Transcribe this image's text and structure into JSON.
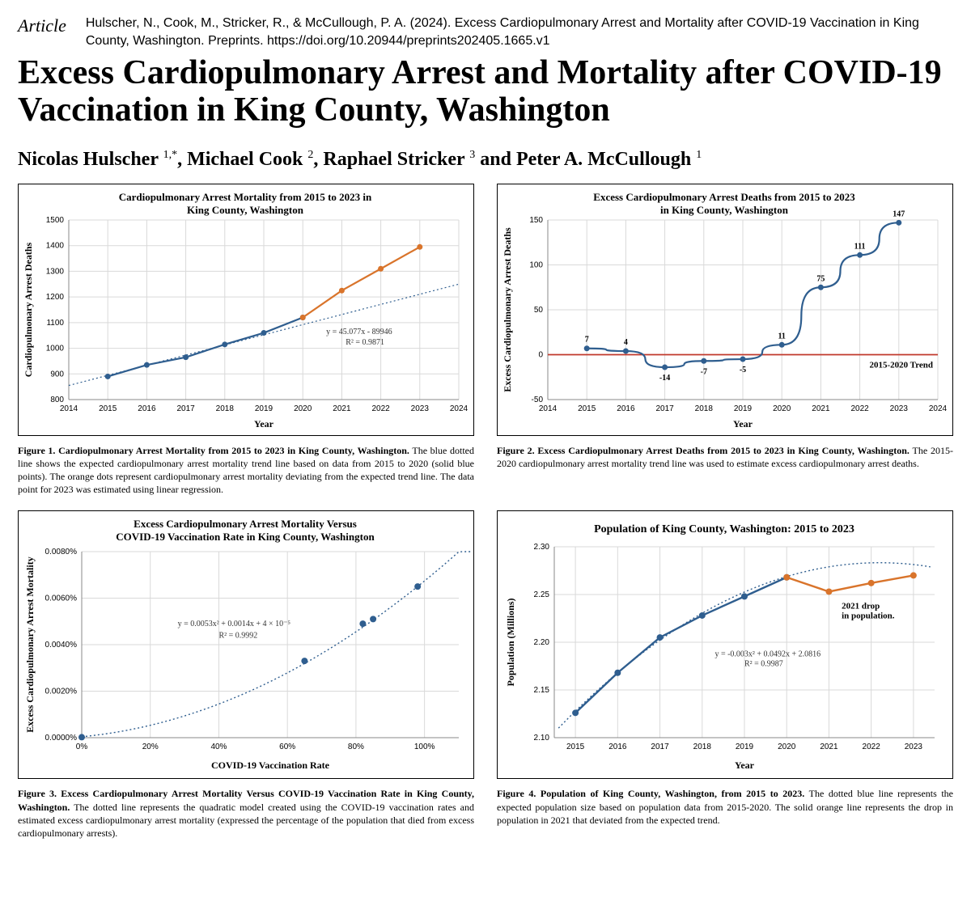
{
  "header": {
    "article_label": "Article",
    "citation": "Hulscher, N., Cook, M., Stricker, R., & McCullough, P. A. (2024). Excess Cardiopulmonary Arrest and Mortality after COVID-19 Vaccination in King County, Washington. Preprints. https://doi.org/10.20944/preprints202405.1665.v1",
    "title": "Excess Cardiopulmonary Arrest and Mortality after COVID-19 Vaccination in King County, Washington",
    "authors_html": "Nicolas Hulscher <sup>1,*</sup>, Michael Cook <sup>2</sup>, Raphael Stricker <sup>3</sup> and Peter A. McCullough <sup>1</sup>"
  },
  "colors": {
    "blue": "#2f5e8f",
    "orange": "#d9742b",
    "trend": "#2f5e8f",
    "red": "#c0392b",
    "grid": "#d9d9d9",
    "axis": "#888888",
    "bg": "#ffffff"
  },
  "fig1": {
    "type": "line+scatter",
    "title": "Cardiopulmonary Arrest Mortality from 2015 to 2023 in King County, Washington",
    "xlabel": "Year",
    "ylabel": "Cardiopulmonary Arrest Deaths",
    "xlim": [
      2014,
      2024
    ],
    "ylim": [
      800,
      1500
    ],
    "xticks": [
      2014,
      2015,
      2016,
      2017,
      2018,
      2019,
      2020,
      2021,
      2022,
      2023,
      2024
    ],
    "yticks": [
      800,
      900,
      1000,
      1100,
      1200,
      1300,
      1400,
      1500
    ],
    "blue_pts": [
      [
        2015,
        890
      ],
      [
        2016,
        935
      ],
      [
        2017,
        965
      ],
      [
        2018,
        1015
      ],
      [
        2019,
        1060
      ],
      [
        2020,
        1120
      ]
    ],
    "orange_pts": [
      [
        2020,
        1120
      ],
      [
        2021,
        1225
      ],
      [
        2022,
        1310
      ],
      [
        2023,
        1395
      ]
    ],
    "trend_line": [
      [
        2014,
        855
      ],
      [
        2024,
        1250
      ]
    ],
    "eq1": "y = 45.077x - 89946",
    "eq2": "R² = 0.9871",
    "title_fs": 13,
    "label_fs": 12,
    "tick_fs": 10,
    "caption_b": "Figure 1. Cardiopulmonary Arrest Mortality from 2015 to 2023 in King County, Washington.",
    "caption": "The blue dotted line shows the expected cardiopulmonary arrest mortality trend line based on data from 2015 to 2020 (solid blue points). The orange dots represent cardiopulmonary arrest mortality deviating from the expected trend line. The data point for 2023 was estimated using linear regression."
  },
  "fig2": {
    "type": "line+scatter",
    "title": "Excess Cardiopulmonary Arrest Deaths from 2015 to 2023 in King County, Washington",
    "xlabel": "Year",
    "ylabel": "Excess Cardiopulmonary Arrest Deaths",
    "xlim": [
      2014,
      2024
    ],
    "ylim": [
      -50,
      150
    ],
    "xticks": [
      2014,
      2015,
      2016,
      2017,
      2018,
      2019,
      2020,
      2021,
      2022,
      2023,
      2024
    ],
    "yticks": [
      -50,
      0,
      50,
      100,
      150
    ],
    "pts": [
      [
        2015,
        7
      ],
      [
        2016,
        4
      ],
      [
        2017,
        -14
      ],
      [
        2018,
        -7
      ],
      [
        2019,
        -5
      ],
      [
        2020,
        11
      ],
      [
        2021,
        75
      ],
      [
        2022,
        111
      ],
      [
        2023,
        147
      ]
    ],
    "labels": {
      "2015": "7",
      "2016": "4",
      "2017": "-14",
      "2018": "-7",
      "2019": "-5",
      "2020": "11",
      "2021": "75",
      "2022": "111",
      "2023": "147"
    },
    "zero_line": 0,
    "zero_label": "2015-2020 Trend",
    "title_fs": 13,
    "label_fs": 12,
    "tick_fs": 10,
    "caption_b": "Figure 2. Excess Cardiopulmonary Arrest Deaths from 2015 to 2023 in King County, Washington.",
    "caption": "The 2015-2020 cardiopulmonary arrest mortality trend line was used to estimate excess cardiopulmonary arrest deaths."
  },
  "fig3": {
    "type": "scatter+curve",
    "title": "Excess Cardiopulmonary Arrest Mortality Versus COVID-19 Vaccination Rate in King County, Washington",
    "xlabel": "COVID-19 Vaccination Rate",
    "ylabel": "Excess Cardiopulmonary Arrest Mortality",
    "xlim": [
      0,
      1.1
    ],
    "ylim": [
      0,
      0.008
    ],
    "xticks": [
      0,
      0.2,
      0.4,
      0.6,
      0.8,
      1.0
    ],
    "xticklabels": [
      "0%",
      "20%",
      "40%",
      "60%",
      "80%",
      "100%"
    ],
    "yticks": [
      0,
      0.002,
      0.004,
      0.006,
      0.008
    ],
    "yticklabels": [
      "0.0000%",
      "0.0020%",
      "0.0040%",
      "0.0060%",
      "0.0080%"
    ],
    "pts": [
      [
        0,
        2e-05
      ],
      [
        0.65,
        0.0033
      ],
      [
        0.82,
        0.0049
      ],
      [
        0.85,
        0.0051
      ],
      [
        0.98,
        0.0065
      ]
    ],
    "curve_coef": {
      "a": 0.0053,
      "b": 0.0014,
      "c": 4e-05
    },
    "eq1": "y = 0.0053x² + 0.0014x + 4 × 10⁻⁵",
    "eq2": "R² = 0.9992",
    "title_fs": 13,
    "label_fs": 12,
    "tick_fs": 10,
    "caption_b": "Figure 3. Excess Cardiopulmonary Arrest Mortality Versus COVID-19 Vaccination Rate in King County, Washington.",
    "caption": "The dotted line represents the quadratic model created using the COVID-19 vaccination rates and estimated excess cardiopulmonary arrest mortality (expressed the percentage of the population that died from excess cardiopulmonary arrests)."
  },
  "fig4": {
    "type": "line+scatter",
    "title": "Population of King County, Washington: 2015 to 2023",
    "xlabel": "Year",
    "ylabel": "Population (Millions)",
    "xlim": [
      2014.5,
      2023.5
    ],
    "ylim": [
      2.1,
      2.3
    ],
    "xticks": [
      2015,
      2016,
      2017,
      2018,
      2019,
      2020,
      2021,
      2022,
      2023
    ],
    "yticks": [
      2.1,
      2.15,
      2.2,
      2.25,
      2.3
    ],
    "blue_pts": [
      [
        2015,
        2.126
      ],
      [
        2016,
        2.168
      ],
      [
        2017,
        2.205
      ],
      [
        2018,
        2.228
      ],
      [
        2019,
        2.248
      ],
      [
        2020,
        2.268
      ]
    ],
    "orange_pts": [
      [
        2020,
        2.268
      ],
      [
        2021,
        2.253
      ],
      [
        2022,
        2.262
      ],
      [
        2023,
        2.27
      ]
    ],
    "trend_poly": {
      "a": -0.003,
      "b": 0.0492,
      "c": 2.0816
    },
    "eq1": "y = -0.003x² + 0.0492x + 2.0816",
    "eq2": "R² = 0.9987",
    "annotation": "2021 drop in population.",
    "title_fs": 14,
    "label_fs": 12,
    "tick_fs": 10,
    "caption_b": "Figure 4. Population of King County, Washington, from 2015 to 2023.",
    "caption": "The dotted blue line represents the expected population size based on population data from 2015-2020. The solid orange line represents the drop in population in 2021 that deviated from the expected trend."
  }
}
